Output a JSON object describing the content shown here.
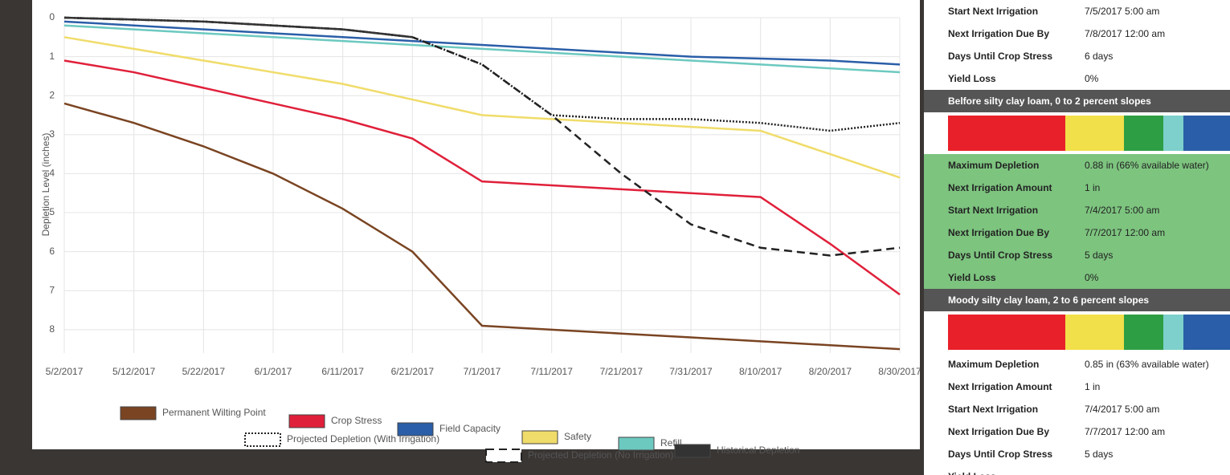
{
  "chart_data": {
    "type": "line",
    "y_label": "Depletion Level (inches)",
    "categories": [
      "5/2/2017",
      "5/12/2017",
      "5/22/2017",
      "6/1/2017",
      "6/11/2017",
      "6/21/2017",
      "7/1/2017",
      "7/11/2017",
      "7/21/2017",
      "7/31/2017",
      "8/10/2017",
      "8/20/2017",
      "8/30/2017"
    ],
    "ylim": [
      0,
      8.6
    ],
    "yticks": [
      0,
      1,
      2,
      3,
      4,
      5,
      6,
      7,
      8
    ],
    "y_inverted": true,
    "grid": true,
    "series": [
      {
        "name": "Permanent Wilting Point",
        "color": "#7a4422",
        "style": "solid",
        "values": [
          2.2,
          2.7,
          3.3,
          4.0,
          4.9,
          6.0,
          7.9,
          8.0,
          8.1,
          8.2,
          8.3,
          8.4,
          8.5
        ]
      },
      {
        "name": "Crop Stress",
        "color": "#e0203a",
        "style": "solid",
        "values": [
          1.1,
          1.4,
          1.8,
          2.2,
          2.6,
          3.1,
          4.2,
          4.3,
          4.4,
          4.5,
          4.6,
          5.8,
          7.1
        ]
      },
      {
        "name": "Field Capacity",
        "color": "#2a5ea8",
        "style": "solid",
        "values": [
          0.1,
          0.2,
          0.3,
          0.4,
          0.5,
          0.6,
          0.7,
          0.8,
          0.9,
          1.0,
          1.05,
          1.1,
          1.2
        ]
      },
      {
        "name": "Safety",
        "color": "#f0dc6a",
        "style": "solid",
        "values": [
          0.5,
          0.8,
          1.1,
          1.4,
          1.7,
          2.1,
          2.5,
          2.6,
          2.7,
          2.8,
          2.9,
          3.5,
          4.1
        ]
      },
      {
        "name": "Refill",
        "color": "#6cc9c0",
        "style": "solid",
        "values": [
          0.2,
          0.3,
          0.4,
          0.5,
          0.6,
          0.7,
          0.8,
          0.9,
          1.0,
          1.1,
          1.2,
          1.3,
          1.4
        ]
      },
      {
        "name": "Projected Depletion (With Irrigation)",
        "color": "#222222",
        "style": "dotted",
        "values": [
          0,
          0.05,
          0.1,
          0.2,
          0.3,
          0.5,
          1.2,
          2.5,
          2.6,
          2.6,
          2.7,
          2.9,
          2.7
        ]
      },
      {
        "name": "Projected Depletion (No Irrigation)",
        "color": "#222222",
        "style": "dashed",
        "values": [
          0,
          0.05,
          0.1,
          0.2,
          0.3,
          0.5,
          1.2,
          2.5,
          4.0,
          5.3,
          5.9,
          6.1,
          5.9
        ]
      },
      {
        "name": "Historical Depletion",
        "color": "#333333",
        "style": "solid",
        "values": [
          0,
          0.05,
          0.1,
          0.2,
          0.3,
          0.5,
          null,
          null,
          null,
          null,
          null,
          null,
          null
        ]
      }
    ]
  },
  "panel": {
    "top_rows": [
      [
        "Start Next Irrigation",
        "7/5/2017 5:00 am"
      ],
      [
        "Next Irrigation Due By",
        "7/8/2017 12:00 am"
      ],
      [
        "Days Until Crop Stress",
        "6 days"
      ],
      [
        "Yield Loss",
        "0%"
      ]
    ],
    "sections": [
      {
        "title": "Belfore silty clay loam, 0 to 2 percent slopes",
        "rows": [
          [
            "Maximum Depletion",
            "0.88 in (66% available water)"
          ],
          [
            "Next Irrigation Amount",
            "1 in"
          ],
          [
            "Start Next Irrigation",
            "7/4/2017 5:00 am"
          ],
          [
            "Next Irrigation Due By",
            "7/7/2017 12:00 am"
          ],
          [
            "Days Until Crop Stress",
            "5 days"
          ],
          [
            "Yield Loss",
            "0%"
          ]
        ]
      },
      {
        "title": "Moody silty clay loam, 2 to 6 percent slopes",
        "rows": [
          [
            "Maximum Depletion",
            "0.85 in (63% available water)"
          ],
          [
            "Next Irrigation Amount",
            "1 in"
          ],
          [
            "Start Next Irrigation",
            "7/4/2017 5:00 am"
          ],
          [
            "Next Irrigation Due By",
            "7/7/2017 12:00 am"
          ],
          [
            "Days Until Crop Stress",
            "5 days"
          ],
          [
            "Yield Loss"
          ]
        ]
      }
    ]
  }
}
